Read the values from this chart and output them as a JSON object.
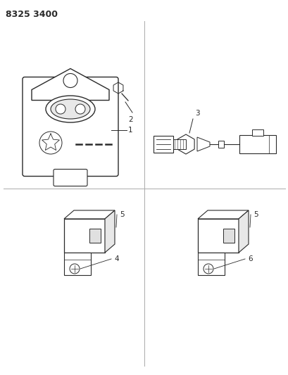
{
  "title": "8325 3400",
  "bg_color": "#ffffff",
  "line_color": "#2a2a2a",
  "grid_line_color": "#aaaaaa",
  "title_fontsize": 9,
  "label_fontsize": 7.5,
  "figsize": [
    4.1,
    5.33
  ],
  "dpi": 100
}
